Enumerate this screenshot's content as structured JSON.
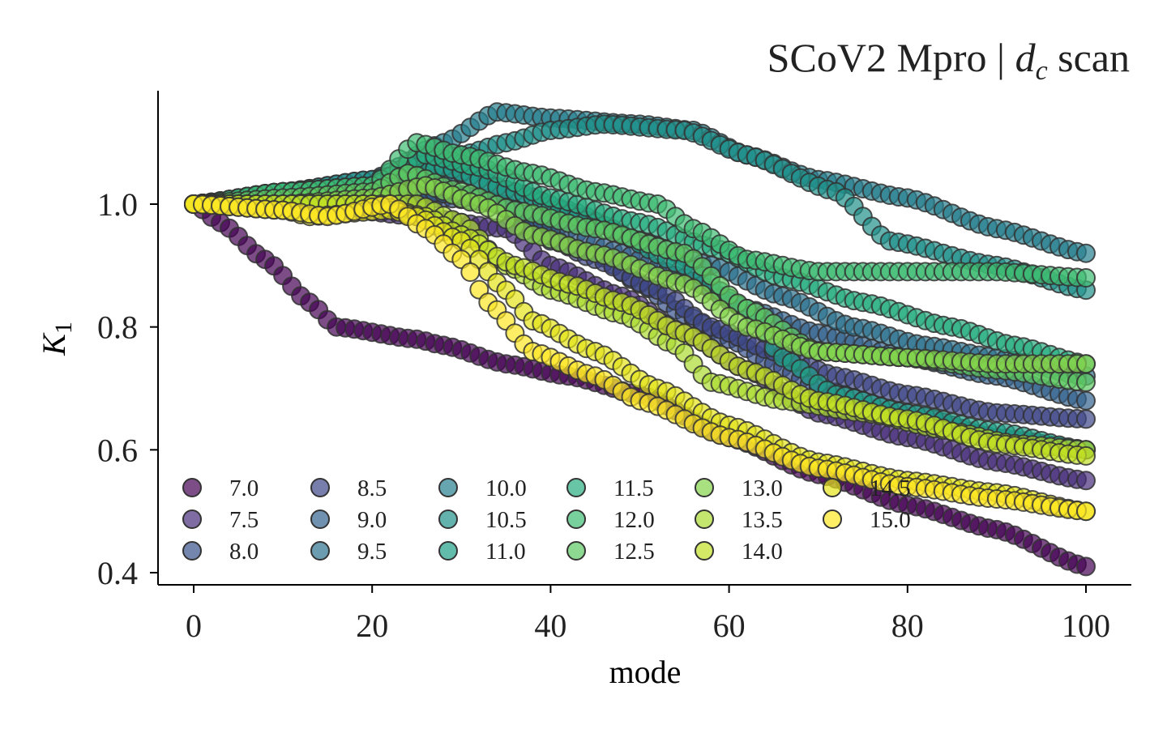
{
  "chart_data": {
    "type": "scatter",
    "title": "SCoV2 Mpro | d_c scan",
    "title_parts": {
      "prefix": "SCoV2 Mpro | ",
      "var": "d",
      "sub": "c",
      "suffix": " scan"
    },
    "xlabel": "mode",
    "ylabel": "K_1",
    "ylabel_parts": {
      "var": "K",
      "sub": "1"
    },
    "xlim": [
      -4,
      105
    ],
    "ylim": [
      0.375,
      1.185
    ],
    "xticks": [
      0,
      20,
      40,
      60,
      80,
      100
    ],
    "xtick_labels": [
      "0",
      "20",
      "40",
      "60",
      "80",
      "100"
    ],
    "yticks": [
      0.4,
      0.6,
      0.8,
      1.0
    ],
    "ytick_labels": [
      "0.4",
      "0.6",
      "0.8",
      "1.0"
    ],
    "grid": false,
    "legend_placement": "lower-left",
    "legend_columns": 7,
    "marker_edge_color": "#333333",
    "series": [
      {
        "name": "7.0",
        "color": "#440154",
        "keypoints": [
          [
            0,
            1.0
          ],
          [
            3,
            0.97
          ],
          [
            8,
            0.91
          ],
          [
            13,
            0.84
          ],
          [
            16,
            0.8
          ],
          [
            25,
            0.78
          ],
          [
            28,
            0.77
          ],
          [
            35,
            0.74
          ],
          [
            42,
            0.72
          ],
          [
            50,
            0.69
          ],
          [
            60,
            0.62
          ],
          [
            70,
            0.56
          ],
          [
            80,
            0.51
          ],
          [
            90,
            0.47
          ],
          [
            100,
            0.41
          ]
        ]
      },
      {
        "name": "7.5",
        "color": "#472d7b",
        "keypoints": [
          [
            0,
            1.0
          ],
          [
            10,
            1.0
          ],
          [
            18,
            0.99
          ],
          [
            25,
            0.98
          ],
          [
            35,
            0.96
          ],
          [
            40,
            0.9
          ],
          [
            48,
            0.85
          ],
          [
            55,
            0.79
          ],
          [
            62,
            0.73
          ],
          [
            70,
            0.66
          ],
          [
            80,
            0.62
          ],
          [
            90,
            0.58
          ],
          [
            100,
            0.55
          ]
        ]
      },
      {
        "name": "8.0",
        "color": "#3b528b",
        "keypoints": [
          [
            0,
            1.0
          ],
          [
            10,
            1.0
          ],
          [
            20,
            1.0
          ],
          [
            28,
            1.01
          ],
          [
            35,
            1.0
          ],
          [
            40,
            0.94
          ],
          [
            45,
            0.92
          ],
          [
            50,
            0.87
          ],
          [
            55,
            0.82
          ],
          [
            60,
            0.78
          ],
          [
            65,
            0.74
          ],
          [
            70,
            0.7
          ],
          [
            80,
            0.66
          ],
          [
            90,
            0.62
          ],
          [
            100,
            0.6
          ]
        ]
      },
      {
        "name": "8.5",
        "color": "#3f4788",
        "keypoints": [
          [
            0,
            1.0
          ],
          [
            10,
            1.0
          ],
          [
            20,
            1.0
          ],
          [
            27,
            1.02
          ],
          [
            33,
            1.01
          ],
          [
            38,
            0.96
          ],
          [
            45,
            0.91
          ],
          [
            52,
            0.86
          ],
          [
            58,
            0.8
          ],
          [
            65,
            0.76
          ],
          [
            72,
            0.72
          ],
          [
            80,
            0.69
          ],
          [
            90,
            0.66
          ],
          [
            100,
            0.65
          ]
        ]
      },
      {
        "name": "9.0",
        "color": "#33638d",
        "keypoints": [
          [
            0,
            1.0
          ],
          [
            10,
            1.0
          ],
          [
            20,
            1.01
          ],
          [
            26,
            1.02
          ],
          [
            32,
            1.01
          ],
          [
            40,
            0.97
          ],
          [
            48,
            0.92
          ],
          [
            55,
            0.88
          ],
          [
            62,
            0.83
          ],
          [
            70,
            0.79
          ],
          [
            80,
            0.75
          ],
          [
            90,
            0.72
          ],
          [
            100,
            0.68
          ]
        ]
      },
      {
        "name": "9.5",
        "color": "#2c728e",
        "keypoints": [
          [
            0,
            1.0
          ],
          [
            10,
            1.0
          ],
          [
            20,
            1.02
          ],
          [
            30,
            1.05
          ],
          [
            36,
            1.02
          ],
          [
            42,
            0.99
          ],
          [
            50,
            0.94
          ],
          [
            58,
            0.9
          ],
          [
            66,
            0.85
          ],
          [
            74,
            0.8
          ],
          [
            82,
            0.77
          ],
          [
            90,
            0.75
          ],
          [
            100,
            0.72
          ]
        ]
      },
      {
        "name": "10.0",
        "color": "#277f8e",
        "keypoints": [
          [
            0,
            1.0
          ],
          [
            10,
            1.02
          ],
          [
            20,
            1.04
          ],
          [
            28,
            1.1
          ],
          [
            34,
            1.15
          ],
          [
            40,
            1.14
          ],
          [
            50,
            1.13
          ],
          [
            56,
            1.12
          ],
          [
            62,
            1.08
          ],
          [
            70,
            1.04
          ],
          [
            80,
            1.01
          ],
          [
            90,
            0.96
          ],
          [
            100,
            0.92
          ]
        ]
      },
      {
        "name": "10.5",
        "color": "#21918c",
        "keypoints": [
          [
            0,
            1.0
          ],
          [
            10,
            1.02
          ],
          [
            20,
            1.04
          ],
          [
            30,
            1.08
          ],
          [
            35,
            1.1
          ],
          [
            40,
            1.12
          ],
          [
            46,
            1.13
          ],
          [
            55,
            1.12
          ],
          [
            62,
            1.08
          ],
          [
            72,
            1.02
          ],
          [
            78,
            0.94
          ],
          [
            90,
            0.9
          ],
          [
            100,
            0.86
          ]
        ]
      },
      {
        "name": "11.0",
        "color": "#1fa088",
        "keypoints": [
          [
            0,
            1.0
          ],
          [
            10,
            1.02
          ],
          [
            20,
            1.03
          ],
          [
            28,
            1.06
          ],
          [
            36,
            1.02
          ],
          [
            45,
            0.97
          ],
          [
            55,
            0.9
          ],
          [
            62,
            0.83
          ],
          [
            66,
            0.75
          ],
          [
            72,
            0.69
          ],
          [
            80,
            0.66
          ],
          [
            90,
            0.63
          ],
          [
            100,
            0.6
          ]
        ]
      },
      {
        "name": "11.5",
        "color": "#28ae80",
        "keypoints": [
          [
            0,
            1.0
          ],
          [
            10,
            1.02
          ],
          [
            20,
            1.03
          ],
          [
            26,
            1.08
          ],
          [
            32,
            1.06
          ],
          [
            40,
            1.01
          ],
          [
            50,
            0.97
          ],
          [
            58,
            0.93
          ],
          [
            66,
            0.88
          ],
          [
            75,
            0.84
          ],
          [
            85,
            0.8
          ],
          [
            92,
            0.77
          ],
          [
            100,
            0.74
          ]
        ]
      },
      {
        "name": "12.0",
        "color": "#3fbc73",
        "keypoints": [
          [
            0,
            1.0
          ],
          [
            10,
            1.02
          ],
          [
            20,
            1.03
          ],
          [
            25,
            1.1
          ],
          [
            30,
            1.08
          ],
          [
            38,
            1.05
          ],
          [
            45,
            1.02
          ],
          [
            52,
            1.0
          ],
          [
            56,
            0.96
          ],
          [
            62,
            0.91
          ],
          [
            70,
            0.89
          ],
          [
            80,
            0.89
          ],
          [
            90,
            0.89
          ],
          [
            100,
            0.88
          ]
        ]
      },
      {
        "name": "12.5",
        "color": "#5ec962",
        "keypoints": [
          [
            0,
            1.0
          ],
          [
            10,
            1.01
          ],
          [
            20,
            1.02
          ],
          [
            24,
            1.05
          ],
          [
            30,
            1.02
          ],
          [
            36,
            0.99
          ],
          [
            45,
            0.96
          ],
          [
            55,
            0.92
          ],
          [
            62,
            0.83
          ],
          [
            70,
            0.76
          ],
          [
            80,
            0.75
          ],
          [
            90,
            0.73
          ],
          [
            100,
            0.71
          ]
        ]
      },
      {
        "name": "13.0",
        "color": "#84d44b",
        "keypoints": [
          [
            0,
            1.0
          ],
          [
            10,
            1.0
          ],
          [
            20,
            1.01
          ],
          [
            26,
            1.03
          ],
          [
            32,
            1.0
          ],
          [
            38,
            0.95
          ],
          [
            45,
            0.92
          ],
          [
            55,
            0.87
          ],
          [
            62,
            0.8
          ],
          [
            70,
            0.76
          ],
          [
            80,
            0.75
          ],
          [
            90,
            0.74
          ],
          [
            100,
            0.74
          ]
        ]
      },
      {
        "name": "13.5",
        "color": "#addc30",
        "keypoints": [
          [
            0,
            1.0
          ],
          [
            10,
            1.0
          ],
          [
            20,
            1.0
          ],
          [
            25,
            1.0
          ],
          [
            30,
            0.97
          ],
          [
            35,
            0.9
          ],
          [
            40,
            0.86
          ],
          [
            48,
            0.82
          ],
          [
            54,
            0.77
          ],
          [
            58,
            0.71
          ],
          [
            66,
            0.68
          ],
          [
            75,
            0.66
          ],
          [
            85,
            0.63
          ],
          [
            92,
            0.61
          ],
          [
            100,
            0.6
          ]
        ]
      },
      {
        "name": "14.0",
        "color": "#c2df23",
        "keypoints": [
          [
            0,
            1.0
          ],
          [
            10,
            1.0
          ],
          [
            20,
            1.0
          ],
          [
            26,
            0.98
          ],
          [
            30,
            0.95
          ],
          [
            36,
            0.9
          ],
          [
            42,
            0.87
          ],
          [
            48,
            0.84
          ],
          [
            55,
            0.79
          ],
          [
            62,
            0.73
          ],
          [
            70,
            0.68
          ],
          [
            80,
            0.65
          ],
          [
            90,
            0.61
          ],
          [
            100,
            0.59
          ]
        ]
      },
      {
        "name": "14.5",
        "color": "#e4e419",
        "keypoints": [
          [
            0,
            1.0
          ],
          [
            10,
            0.99
          ],
          [
            13,
            0.98
          ],
          [
            22,
            0.99
          ],
          [
            25,
            0.98
          ],
          [
            30,
            0.94
          ],
          [
            35,
            0.86
          ],
          [
            38,
            0.81
          ],
          [
            45,
            0.76
          ],
          [
            52,
            0.7
          ],
          [
            60,
            0.64
          ],
          [
            70,
            0.58
          ],
          [
            80,
            0.55
          ],
          [
            90,
            0.53
          ],
          [
            100,
            0.5
          ]
        ]
      },
      {
        "name": "15.0",
        "color": "#fde725",
        "keypoints": [
          [
            0,
            1.0
          ],
          [
            10,
            0.99
          ],
          [
            15,
            0.98
          ],
          [
            22,
            1.0
          ],
          [
            26,
            0.96
          ],
          [
            30,
            0.91
          ],
          [
            33,
            0.84
          ],
          [
            38,
            0.76
          ],
          [
            45,
            0.72
          ],
          [
            50,
            0.68
          ],
          [
            60,
            0.62
          ],
          [
            70,
            0.57
          ],
          [
            80,
            0.54
          ],
          [
            90,
            0.52
          ],
          [
            100,
            0.5
          ]
        ]
      }
    ]
  }
}
